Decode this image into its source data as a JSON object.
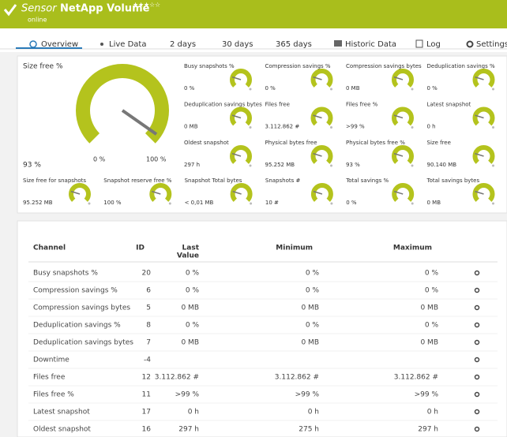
{
  "header": {
    "prefix": "Sensor",
    "title": "NetApp Volume",
    "status": "online",
    "priority": 3
  },
  "tabs": [
    "Overview",
    "Live Data",
    "2  days",
    "30  days",
    "365  days",
    "Historic Data",
    "Log",
    "Settings"
  ],
  "overview": {
    "main": {
      "label": "Size free %",
      "value": "93 %",
      "min": "0 %",
      "max": "100 %"
    },
    "tiles": [
      {
        "label": "Busy snapshots %",
        "value": "0 %"
      },
      {
        "label": "Compression savings %",
        "value": "0 %"
      },
      {
        "label": "Compression savings bytes",
        "value": "0 MB"
      },
      {
        "label": "Deduplication savings %",
        "value": "0 %"
      },
      {
        "label": "Deduplication savings bytes",
        "value": "0 MB"
      },
      {
        "label": "Files free",
        "value": "3.112.862 #"
      },
      {
        "label": "Files free %",
        "value": ">99 %"
      },
      {
        "label": "Latest snapshot",
        "value": "0 h"
      },
      {
        "label": "Oldest snapshot",
        "value": "297 h"
      },
      {
        "label": "Physical bytes free",
        "value": "95.252 MB"
      },
      {
        "label": "Physical bytes free %",
        "value": "93 %"
      },
      {
        "label": "Size free",
        "value": "90.140 MB"
      },
      {
        "label": "Size free for snapshots",
        "value": "95.252 MB"
      },
      {
        "label": "Snapshot reserve free %",
        "value": "100 %"
      },
      {
        "label": "Snapshot Total bytes",
        "value": "< 0,01 MB"
      },
      {
        "label": "Snapshots #",
        "value": "10 #"
      },
      {
        "label": "Total savings %",
        "value": "0 %"
      },
      {
        "label": "Total savings bytes",
        "value": "0 MB"
      }
    ]
  },
  "table": {
    "header": [
      "Channel",
      "ID",
      [
        "Last",
        "Value"
      ],
      "Minimum",
      "Maximum"
    ],
    "rows": [
      [
        "Busy snapshots %",
        20,
        "0 %",
        "0 %",
        "0 %"
      ],
      [
        "Compression savings %",
        6,
        "0 %",
        "0 %",
        "0 %"
      ],
      [
        "Compression savings bytes",
        5,
        "0 MB",
        "0 MB",
        "0 MB"
      ],
      [
        "Deduplication savings %",
        8,
        "0 %",
        "0 %",
        "0 %"
      ],
      [
        "Deduplication savings bytes",
        7,
        "0 MB",
        "0 MB",
        "0 MB"
      ],
      [
        "Downtime",
        -4,
        null,
        null,
        null
      ],
      [
        "Files free",
        12,
        "3.112.862 #",
        "3.112.862 #",
        "3.112.862 #"
      ],
      [
        "Files free %",
        11,
        ">99 %",
        ">99 %",
        ">99 %"
      ],
      [
        "Latest snapshot",
        17,
        "0 h",
        "0 h",
        "0 h"
      ],
      [
        "Oldest snapshot",
        16,
        "297 h",
        "275 h",
        "297 h"
      ]
    ]
  }
}
